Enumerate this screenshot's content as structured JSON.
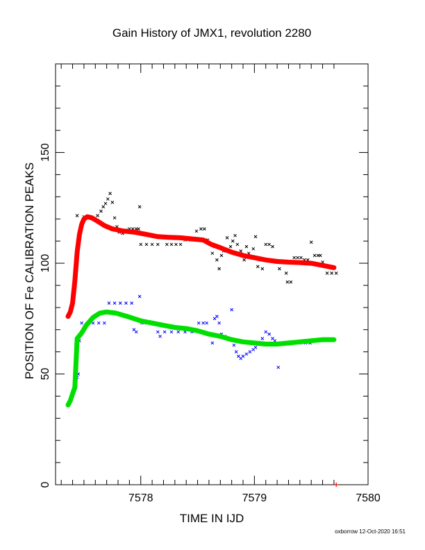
{
  "chart_data": {
    "type": "scatter",
    "title": "Gain History of JMX1, revolution 2280",
    "xlabel": "TIME IN IJD",
    "ylabel": "POSITION OF Fe CALIBRATION PEAKS",
    "xlim": [
      7577.25,
      7580
    ],
    "ylim": [
      0,
      190
    ],
    "xticks": [
      7578,
      7579,
      7580
    ],
    "yticks": [
      0,
      50,
      100,
      150
    ],
    "grid": false,
    "credit": "oxborrow 12-Oct-2020 16:51",
    "series": [
      {
        "role": "upper-peak-measurements",
        "marker": "x",
        "color": "#000000",
        "points": [
          [
            7577.44,
            121.5
          ],
          [
            7577.5,
            121.0
          ],
          [
            7577.55,
            120.5
          ],
          [
            7577.62,
            121.5
          ],
          [
            7577.65,
            123.5
          ],
          [
            7577.67,
            125.5
          ],
          [
            7577.69,
            127.0
          ],
          [
            7577.71,
            129.0
          ],
          [
            7577.73,
            131.5
          ],
          [
            7577.75,
            127.5
          ],
          [
            7577.77,
            120.5
          ],
          [
            7577.79,
            116.5
          ],
          [
            7577.81,
            114.0
          ],
          [
            7577.84,
            113.5
          ],
          [
            7577.87,
            115.0
          ],
          [
            7577.9,
            115.5
          ],
          [
            7577.93,
            115.5
          ],
          [
            7577.96,
            115.5
          ],
          [
            7577.98,
            115.5
          ],
          [
            7577.99,
            125.5
          ],
          [
            7578.0,
            108.5
          ],
          [
            7578.05,
            108.5
          ],
          [
            7578.1,
            108.5
          ],
          [
            7578.15,
            108.5
          ],
          [
            7578.2,
            111.5
          ],
          [
            7578.23,
            108.5
          ],
          [
            7578.27,
            108.5
          ],
          [
            7578.31,
            108.5
          ],
          [
            7578.35,
            108.5
          ],
          [
            7578.39,
            110.5
          ],
          [
            7578.44,
            110.5
          ],
          [
            7578.49,
            114.5
          ],
          [
            7578.53,
            115.5
          ],
          [
            7578.56,
            115.5
          ],
          [
            7578.59,
            110.5
          ],
          [
            7578.61,
            108.5
          ],
          [
            7578.63,
            104.5
          ],
          [
            7578.65,
            107.5
          ],
          [
            7578.67,
            101.5
          ],
          [
            7578.69,
            97.5
          ],
          [
            7578.71,
            103.5
          ],
          [
            7578.73,
            105.5
          ],
          [
            7578.76,
            111.5
          ],
          [
            7578.79,
            107.5
          ],
          [
            7578.81,
            110.0
          ],
          [
            7578.83,
            112.5
          ],
          [
            7578.85,
            108.5
          ],
          [
            7578.88,
            105.5
          ],
          [
            7578.91,
            101.5
          ],
          [
            7578.93,
            107.5
          ],
          [
            7578.95,
            104.5
          ],
          [
            7578.97,
            102.5
          ],
          [
            7578.99,
            106.5
          ],
          [
            7579.01,
            112.0
          ],
          [
            7579.03,
            98.5
          ],
          [
            7579.05,
            101.5
          ],
          [
            7579.07,
            97.5
          ],
          [
            7579.1,
            108.5
          ],
          [
            7579.13,
            108.5
          ],
          [
            7579.16,
            107.5
          ],
          [
            7579.19,
            100.5
          ],
          [
            7579.22,
            97.5
          ],
          [
            7579.25,
            100.5
          ],
          [
            7579.28,
            95.5
          ],
          [
            7579.29,
            91.5
          ],
          [
            7579.32,
            91.5
          ],
          [
            7579.35,
            102.5
          ],
          [
            7579.38,
            102.5
          ],
          [
            7579.41,
            102.5
          ],
          [
            7579.44,
            101.5
          ],
          [
            7579.47,
            101.5
          ],
          [
            7579.5,
            109.5
          ],
          [
            7579.53,
            103.5
          ],
          [
            7579.56,
            103.5
          ],
          [
            7579.58,
            103.5
          ],
          [
            7579.6,
            100.5
          ],
          [
            7579.64,
            95.5
          ],
          [
            7579.68,
            95.5
          ],
          [
            7579.72,
            95.5
          ]
        ]
      },
      {
        "role": "upper-peak-fit",
        "marker": "+",
        "color": "#ff0000",
        "points": [
          [
            7577.36,
            76.0
          ],
          [
            7577.38,
            78.0
          ],
          [
            7577.4,
            82.0
          ],
          [
            7577.42,
            92.0
          ],
          [
            7577.44,
            105.0
          ],
          [
            7577.46,
            113.0
          ],
          [
            7577.48,
            117.5
          ],
          [
            7577.5,
            120.0
          ],
          [
            7577.53,
            121.0
          ],
          [
            7577.57,
            120.5
          ],
          [
            7577.62,
            119.0
          ],
          [
            7577.68,
            117.0
          ],
          [
            7577.75,
            115.5
          ],
          [
            7577.85,
            114.5
          ],
          [
            7577.95,
            114.0
          ],
          [
            7578.05,
            113.0
          ],
          [
            7578.15,
            112.0
          ],
          [
            7578.25,
            111.7
          ],
          [
            7578.35,
            111.5
          ],
          [
            7578.45,
            111.0
          ],
          [
            7578.55,
            110.5
          ],
          [
            7578.62,
            108.5
          ],
          [
            7578.7,
            107.0
          ],
          [
            7578.8,
            105.0
          ],
          [
            7578.9,
            103.5
          ],
          [
            7579.0,
            102.5
          ],
          [
            7579.1,
            101.5
          ],
          [
            7579.2,
            100.8
          ],
          [
            7579.3,
            100.5
          ],
          [
            7579.4,
            100.3
          ],
          [
            7579.5,
            100.0
          ],
          [
            7579.6,
            99.0
          ],
          [
            7579.7,
            98.0
          ],
          [
            7579.72,
            0.0
          ]
        ]
      },
      {
        "role": "lower-peak-measurements",
        "marker": "x",
        "color": "#0000ff",
        "points": [
          [
            7577.44,
            48.5
          ],
          [
            7577.45,
            50.0
          ],
          [
            7577.46,
            65.0
          ],
          [
            7577.48,
            73.0
          ],
          [
            7577.53,
            73.0
          ],
          [
            7577.58,
            73.0
          ],
          [
            7577.63,
            73.0
          ],
          [
            7577.68,
            73.0
          ],
          [
            7577.72,
            82.0
          ],
          [
            7577.77,
            82.0
          ],
          [
            7577.82,
            82.0
          ],
          [
            7577.87,
            82.0
          ],
          [
            7577.92,
            82.0
          ],
          [
            7577.94,
            70.0
          ],
          [
            7577.96,
            69.0
          ],
          [
            7577.99,
            85.0
          ],
          [
            7578.01,
            73.0
          ],
          [
            7578.05,
            73.0
          ],
          [
            7578.1,
            73.0
          ],
          [
            7578.15,
            69.0
          ],
          [
            7578.17,
            67.0
          ],
          [
            7578.21,
            69.0
          ],
          [
            7578.27,
            69.0
          ],
          [
            7578.33,
            69.0
          ],
          [
            7578.39,
            69.0
          ],
          [
            7578.45,
            69.0
          ],
          [
            7578.51,
            73.0
          ],
          [
            7578.55,
            73.0
          ],
          [
            7578.58,
            73.0
          ],
          [
            7578.61,
            68.0
          ],
          [
            7578.63,
            64.0
          ],
          [
            7578.65,
            75.0
          ],
          [
            7578.67,
            76.0
          ],
          [
            7578.69,
            73.0
          ],
          [
            7578.71,
            68.0
          ],
          [
            7578.74,
            67.0
          ],
          [
            7578.77,
            66.0
          ],
          [
            7578.8,
            79.0
          ],
          [
            7578.82,
            63.0
          ],
          [
            7578.84,
            60.0
          ],
          [
            7578.86,
            58.0
          ],
          [
            7578.88,
            57.0
          ],
          [
            7578.9,
            58.0
          ],
          [
            7578.93,
            59.0
          ],
          [
            7578.96,
            60.0
          ],
          [
            7578.99,
            61.0
          ],
          [
            7579.01,
            62.0
          ],
          [
            7579.04,
            64.0
          ],
          [
            7579.07,
            66.0
          ],
          [
            7579.1,
            69.0
          ],
          [
            7579.13,
            68.0
          ],
          [
            7579.16,
            66.0
          ],
          [
            7579.18,
            65.0
          ],
          [
            7579.21,
            53.0
          ],
          [
            7579.24,
            64.0
          ],
          [
            7579.28,
            64.0
          ],
          [
            7579.33,
            64.0
          ],
          [
            7579.4,
            64.0
          ],
          [
            7579.45,
            64.0
          ],
          [
            7579.49,
            64.0
          ]
        ]
      },
      {
        "role": "lower-peak-fit",
        "marker": "+",
        "color": "#00e000",
        "points": [
          [
            7577.36,
            36.0
          ],
          [
            7577.38,
            38.0
          ],
          [
            7577.4,
            41.0
          ],
          [
            7577.42,
            44.0
          ],
          [
            7577.44,
            66.0
          ],
          [
            7577.48,
            68.5
          ],
          [
            7577.52,
            72.0
          ],
          [
            7577.58,
            75.5
          ],
          [
            7577.64,
            77.5
          ],
          [
            7577.7,
            78.0
          ],
          [
            7577.78,
            77.5
          ],
          [
            7577.88,
            76.0
          ],
          [
            7578.0,
            74.0
          ],
          [
            7578.1,
            73.0
          ],
          [
            7578.2,
            72.0
          ],
          [
            7578.3,
            71.0
          ],
          [
            7578.4,
            70.5
          ],
          [
            7578.5,
            69.5
          ],
          [
            7578.6,
            68.0
          ],
          [
            7578.7,
            67.0
          ],
          [
            7578.8,
            65.5
          ],
          [
            7578.9,
            64.5
          ],
          [
            7579.0,
            64.0
          ],
          [
            7579.1,
            63.5
          ],
          [
            7579.2,
            63.5
          ],
          [
            7579.3,
            64.0
          ],
          [
            7579.4,
            64.5
          ],
          [
            7579.5,
            65.0
          ],
          [
            7579.6,
            65.5
          ],
          [
            7579.7,
            65.5
          ]
        ]
      }
    ]
  }
}
